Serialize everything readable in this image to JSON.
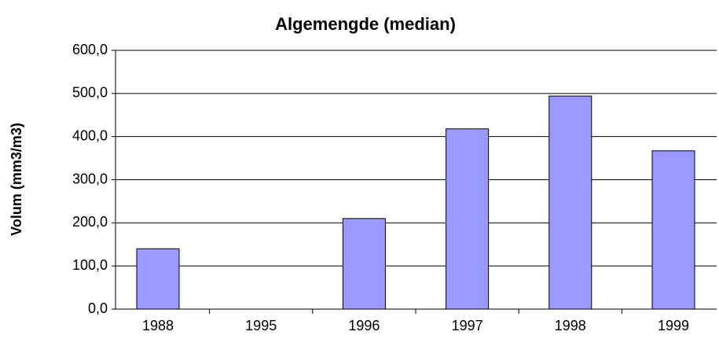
{
  "chart_data": {
    "type": "bar",
    "title": "Algemengde (median)",
    "y_label": "Volum (mm3/m3)",
    "categories": [
      "1988",
      "1995",
      "1996",
      "1997",
      "1998",
      "1999"
    ],
    "values": [
      140,
      null,
      210,
      418,
      494,
      367
    ],
    "color": "#9999ff",
    "ylim": [
      0,
      600
    ],
    "yticks": [
      {
        "value": 0,
        "label": "0,0"
      },
      {
        "value": 100,
        "label": "100,0"
      },
      {
        "value": 200,
        "label": "200,0"
      },
      {
        "value": 300,
        "label": "300,0"
      },
      {
        "value": 400,
        "label": "400,0"
      },
      {
        "value": 500,
        "label": "500,0"
      },
      {
        "value": 600,
        "label": "600,0"
      }
    ],
    "grid": true
  }
}
